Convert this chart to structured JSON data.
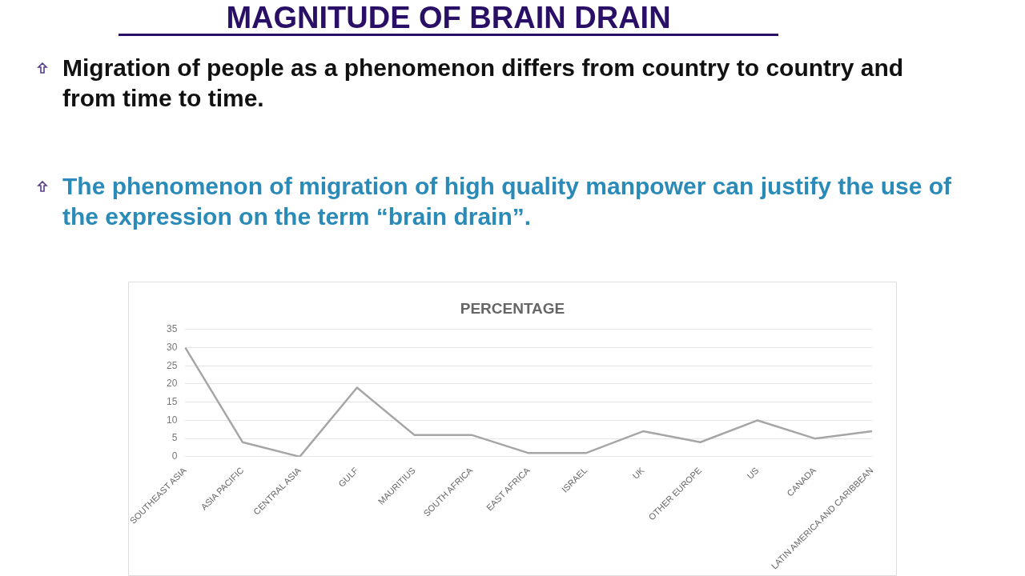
{
  "chart_data": {
    "type": "line",
    "title": "MAGNITUDE OF BRAIN DRAIN",
    "subtitle": "PERCENTAGE",
    "annotations": [
      "Migration of people as a phenomenon differs from country to country and from time to time.",
      "The phenomenon of migration of high quality manpower can justify the use of the expression on the term “brain drain”."
    ],
    "categories": [
      "SOUTHEAST ASIA",
      "ASIA PACIFIC",
      "CENTRAL ASIA",
      "GULF",
      "MAURITIUS",
      "SOUTH AFRICA",
      "EAST AFRICA",
      "ISRAEL",
      "UK",
      "OTHER EUROPE",
      "US",
      "CANADA",
      "LATIN AMERICA AND CARIBBEAN"
    ],
    "series": [
      {
        "color": "#a6a6a6",
        "values": [
          30,
          4,
          0,
          19,
          6,
          6,
          1,
          1,
          7,
          4,
          10,
          5,
          7
        ]
      }
    ],
    "ylim": [
      0,
      35
    ],
    "yticks": [
      0,
      5,
      10,
      15,
      20,
      25,
      30,
      35
    ],
    "grid": "y",
    "legend": false,
    "marker": "none",
    "line_style": "solid"
  }
}
